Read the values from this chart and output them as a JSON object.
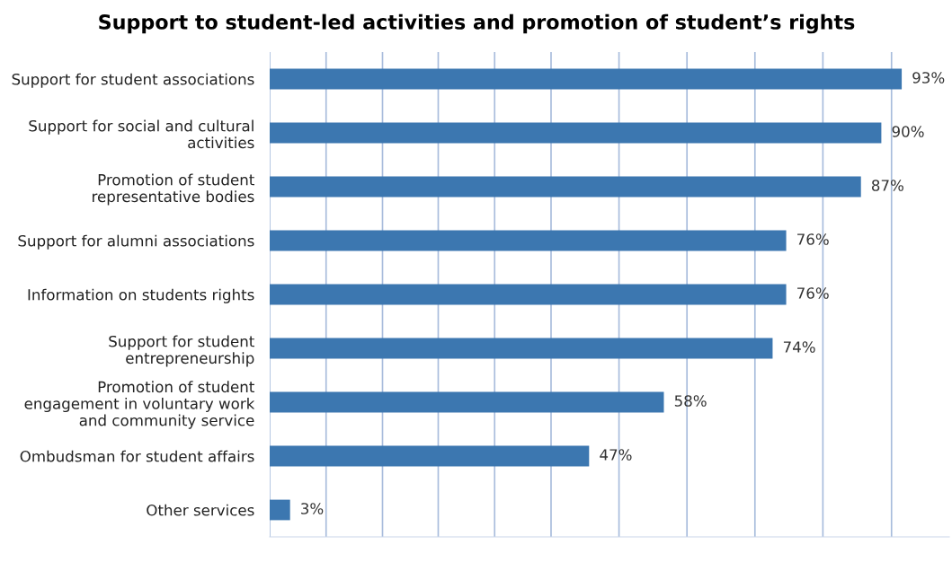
{
  "chart_data": {
    "type": "bar",
    "orientation": "horizontal",
    "title": "Support to student-led activities and promotion of student’s rights",
    "categories": [
      "Support for student associations",
      "Support for social and cultural activities",
      "Promotion of student representative bodies",
      "Support for alumni associations",
      "Information on students rights",
      "Support for student entrepreneurship",
      "Promotion of student engagement in voluntary work and community service",
      "Ombudsman for student affairs",
      "Other services"
    ],
    "values": [
      93,
      90,
      87,
      76,
      76,
      74,
      58,
      47,
      3
    ],
    "value_labels": [
      "93%",
      "90%",
      "87%",
      "76%",
      "76%",
      "74%",
      "58%",
      "47%",
      "3%"
    ],
    "color": "#3c77b0",
    "xlim": [
      0,
      100
    ],
    "xticks": [
      {
        "value": 0,
        "label": null
      },
      {
        "value": 8.3,
        "label": null
      },
      {
        "value": 16.6,
        "label": null
      },
      {
        "value": 24.8,
        "label": null
      },
      {
        "value": 33.1,
        "label": null
      },
      {
        "value": 41.4,
        "label": null
      },
      {
        "value": 51.4,
        "label": null
      },
      {
        "value": 61.4,
        "label": null
      },
      {
        "value": 71.4,
        "label": null
      },
      {
        "value": 81.4,
        "label": null
      },
      {
        "value": 91.5,
        "label": null
      }
    ],
    "grid": "x",
    "legend": false
  }
}
